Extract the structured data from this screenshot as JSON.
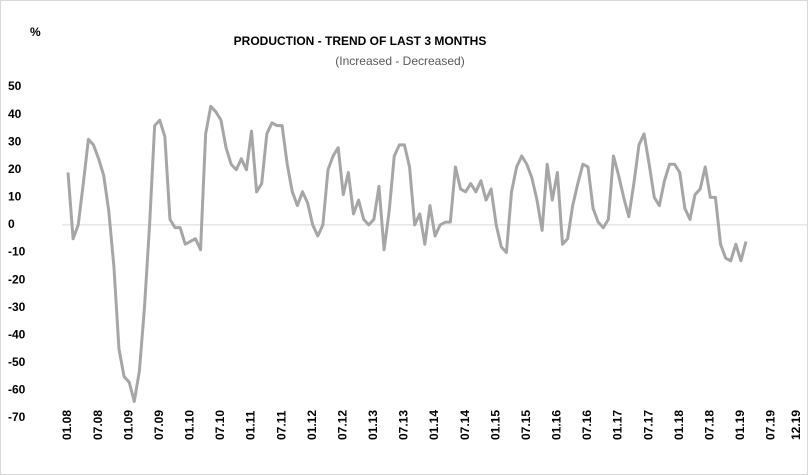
{
  "chart_data": {
    "type": "line",
    "title": "PRODUCTION - TREND OF LAST 3 MONTHS",
    "subtitle": "(Increased - Decreased)",
    "y_label": "%",
    "categories": [
      "01.08",
      null,
      null,
      null,
      null,
      null,
      "07.08",
      null,
      null,
      null,
      null,
      null,
      "01.09",
      null,
      null,
      null,
      null,
      null,
      "07.09",
      null,
      null,
      null,
      null,
      null,
      "01.10",
      null,
      null,
      null,
      null,
      null,
      "07.10",
      null,
      null,
      null,
      null,
      null,
      "01.11",
      null,
      null,
      null,
      null,
      null,
      "07.11",
      null,
      null,
      null,
      null,
      null,
      "01.12",
      null,
      null,
      null,
      null,
      null,
      "07.12",
      null,
      null,
      null,
      null,
      null,
      "01.13",
      null,
      null,
      null,
      null,
      null,
      "07.13",
      null,
      null,
      null,
      null,
      null,
      "01.14",
      null,
      null,
      null,
      null,
      null,
      "07.14",
      null,
      null,
      null,
      null,
      null,
      "01.15",
      null,
      null,
      null,
      null,
      null,
      "07.15",
      null,
      null,
      null,
      null,
      null,
      "01.16",
      null,
      null,
      null,
      null,
      null,
      "07.16",
      null,
      null,
      null,
      null,
      null,
      "01.17",
      null,
      null,
      null,
      null,
      null,
      "07.17",
      null,
      null,
      null,
      null,
      null,
      "01.18",
      null,
      null,
      null,
      null,
      null,
      "07.18",
      null,
      null,
      null,
      null,
      null,
      "01.19",
      null,
      null,
      null,
      null,
      null,
      "07.19",
      null,
      null,
      null,
      null,
      "12.19"
    ],
    "values": [
      19,
      -5,
      0,
      15,
      31,
      29,
      24,
      18,
      5,
      -15,
      -45,
      -55,
      -57,
      -64,
      -53,
      -30,
      0,
      36,
      38,
      32,
      2,
      -1,
      -1,
      -7,
      -6,
      -5,
      -9,
      33,
      43,
      41,
      38,
      28,
      22,
      20,
      24,
      20,
      34,
      12,
      15,
      33,
      37,
      36,
      36,
      22,
      12,
      7,
      12,
      8,
      0,
      -4,
      0,
      20,
      25,
      28,
      11,
      19,
      4,
      9,
      2,
      0,
      2,
      14,
      -9,
      5,
      25,
      29,
      29,
      21,
      0,
      4,
      -7,
      7,
      -4,
      0,
      1,
      1,
      21,
      13,
      12,
      15,
      12,
      16,
      9,
      13,
      0,
      -8,
      -10,
      12,
      21,
      25,
      22,
      17,
      9,
      -2,
      22,
      9,
      19,
      -7,
      -5,
      7,
      15,
      22,
      21,
      6,
      1,
      -1,
      2,
      25,
      18,
      10,
      3,
      15,
      29,
      33,
      22,
      10,
      7,
      16,
      22,
      22,
      19,
      6,
      2,
      11,
      13,
      21,
      10,
      10,
      -7,
      -12,
      -13,
      -7,
      -13,
      -6,
      null,
      null,
      null,
      null,
      null,
      null,
      null,
      null,
      null,
      null
    ],
    "color": "#a6a6a6",
    "ylim": [
      -70,
      50
    ],
    "yticks": [
      -70,
      -60,
      -50,
      -40,
      -30,
      -20,
      -10,
      0,
      10,
      20,
      30,
      40,
      50
    ],
    "grid": false
  }
}
